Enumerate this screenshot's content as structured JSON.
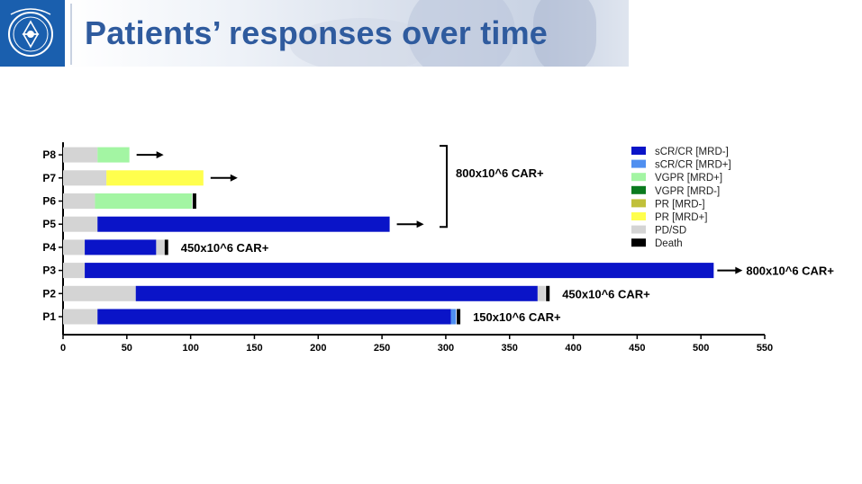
{
  "header": {
    "title": "Patients’ responses over time",
    "logo_icon": "hospital-emblem-icon",
    "brand_color": "#1a5fae"
  },
  "chart_data": {
    "type": "bar",
    "orientation": "horizontal",
    "stacked": true,
    "title": "",
    "xlabel": "",
    "ylabel": "",
    "xlim": [
      0,
      550
    ],
    "x_ticks": [
      0,
      50,
      100,
      150,
      200,
      250,
      300,
      350,
      400,
      450,
      500,
      550
    ],
    "categories": [
      "P1",
      "P2",
      "P3",
      "P4",
      "P5",
      "P6",
      "P7",
      "P8"
    ],
    "legend_position": "top-right",
    "legend": [
      {
        "label": "sCR/CR [MRD-]",
        "color": "#0a14c8"
      },
      {
        "label": "sCR/CR [MRD+]",
        "color": "#4f8ff0"
      },
      {
        "label": "VGPR [MRD+]",
        "color": "#a3f5a3"
      },
      {
        "label": "VGPR [MRD-]",
        "color": "#0a7a1e"
      },
      {
        "label": "PR [MRD-]",
        "color": "#c0c03a"
      },
      {
        "label": "PR [MRD+]",
        "color": "#ffff4d"
      },
      {
        "label": "PD/SD",
        "color": "#d4d4d4"
      },
      {
        "label": "Death",
        "color": "#000000"
      }
    ],
    "patients": [
      {
        "name": "P1",
        "segments": [
          {
            "status": "PD/SD",
            "start": 0,
            "end": 27
          },
          {
            "status": "sCR/CR [MRD-]",
            "start": 27,
            "end": 304
          },
          {
            "status": "sCR/CR [MRD+]",
            "start": 304,
            "end": 308
          }
        ],
        "death": 310,
        "ongoing": false,
        "dose": "150x10^6 CAR+"
      },
      {
        "name": "P2",
        "segments": [
          {
            "status": "PD/SD",
            "start": 0,
            "end": 57
          },
          {
            "status": "sCR/CR [MRD-]",
            "start": 57,
            "end": 372
          },
          {
            "status": "PD/SD",
            "start": 372,
            "end": 378
          }
        ],
        "death": 380,
        "ongoing": false,
        "dose": "450x10^6 CAR+"
      },
      {
        "name": "P3",
        "segments": [
          {
            "status": "PD/SD",
            "start": 0,
            "end": 17
          },
          {
            "status": "sCR/CR [MRD-]",
            "start": 17,
            "end": 510
          }
        ],
        "death": null,
        "ongoing": true,
        "dose": "800x10^6 CAR+"
      },
      {
        "name": "P4",
        "segments": [
          {
            "status": "PD/SD",
            "start": 0,
            "end": 17
          },
          {
            "status": "sCR/CR [MRD-]",
            "start": 17,
            "end": 73
          },
          {
            "status": "PD/SD",
            "start": 73,
            "end": 79
          }
        ],
        "death": 81,
        "ongoing": false,
        "dose": "450x10^6 CAR+"
      },
      {
        "name": "P5",
        "segments": [
          {
            "status": "PD/SD",
            "start": 0,
            "end": 27
          },
          {
            "status": "sCR/CR [MRD-]",
            "start": 27,
            "end": 256
          }
        ],
        "death": null,
        "ongoing": true,
        "dose": null
      },
      {
        "name": "P6",
        "segments": [
          {
            "status": "PD/SD",
            "start": 0,
            "end": 25
          },
          {
            "status": "VGPR [MRD+]",
            "start": 25,
            "end": 101
          }
        ],
        "death": 103,
        "ongoing": false,
        "dose": null
      },
      {
        "name": "P7",
        "segments": [
          {
            "status": "PD/SD",
            "start": 0,
            "end": 34
          },
          {
            "status": "PR [MRD+]",
            "start": 34,
            "end": 110
          }
        ],
        "death": null,
        "ongoing": true,
        "dose": null
      },
      {
        "name": "P8",
        "segments": [
          {
            "status": "PD/SD",
            "start": 0,
            "end": 27
          },
          {
            "status": "VGPR [MRD+]",
            "start": 27,
            "end": 52
          }
        ],
        "death": null,
        "ongoing": true,
        "dose": null
      }
    ],
    "annotations": {
      "group_bracket": {
        "rows": [
          "P5",
          "P6",
          "P7",
          "P8"
        ],
        "label": "800x10^6 CAR+"
      }
    }
  }
}
